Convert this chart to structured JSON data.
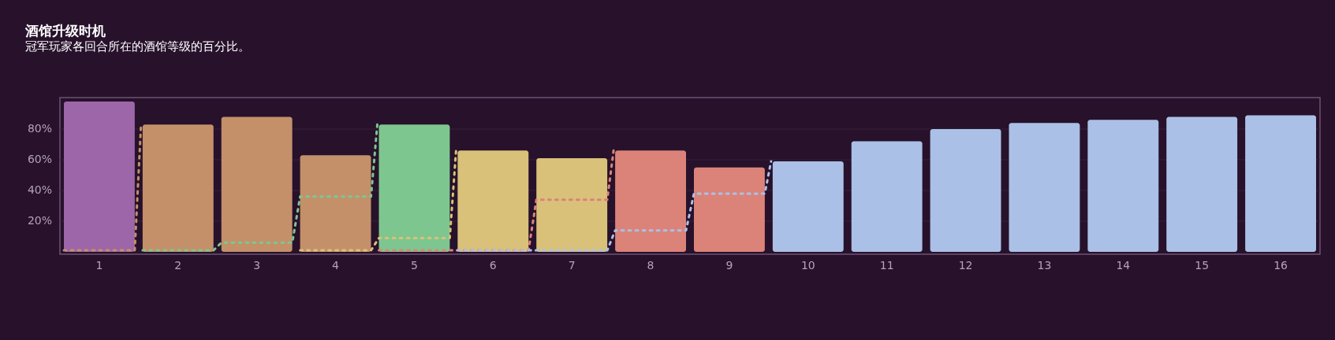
{
  "chart_data": {
    "type": "bar",
    "title": "酒馆升级时机",
    "subtitle": "冠军玩家各回合所在的酒馆等级的百分比。",
    "x": [
      1,
      2,
      3,
      4,
      5,
      6,
      7,
      8,
      9,
      10,
      11,
      12,
      13,
      14,
      15,
      16
    ],
    "series": [
      {
        "colors": [
          "#9d66a9",
          "#c4906a",
          "#c4906a",
          "#c4906a",
          "#7ec68f",
          "#d9c17a",
          "#d9c17a",
          "#dc8379",
          "#dc8379",
          "#abc0e6",
          "#abc0e6",
          "#abc0e6",
          "#abc0e6",
          "#abc0e6",
          "#abc0e6",
          "#abc0e6"
        ],
        "values": [
          98,
          83,
          88,
          63,
          83,
          66,
          61,
          66,
          55,
          59,
          72,
          80,
          84,
          86,
          88,
          89
        ]
      },
      {
        "type": "line",
        "color": "#c4906a",
        "x": [
          0.55,
          1.45,
          1.53
        ],
        "values": [
          1,
          1,
          83
        ]
      },
      {
        "type": "line",
        "color": "#7ec68f",
        "x": [
          1.55,
          2.45,
          2.55,
          3.45,
          3.55,
          4.45,
          4.53
        ],
        "values": [
          1,
          1,
          6,
          6,
          36,
          36,
          83
        ]
      },
      {
        "type": "line",
        "color": "#d9c17a",
        "x": [
          3.55,
          4.45,
          4.55,
          5.45,
          5.53
        ],
        "values": [
          1,
          1,
          9,
          9,
          66
        ]
      },
      {
        "type": "line",
        "color": "#dc8379",
        "x": [
          4.55,
          6.45,
          6.55,
          7.45,
          7.53
        ],
        "values": [
          1,
          1,
          34,
          34,
          66
        ]
      },
      {
        "type": "line",
        "color": "#abc0e6",
        "x": [
          5.55,
          7.45,
          7.55,
          8.45,
          8.55,
          9.45,
          9.53
        ],
        "values": [
          1,
          1,
          14,
          14,
          38,
          38,
          59
        ]
      }
    ],
    "xlim": [
      0.5,
      16.5
    ],
    "xticks": [
      1,
      2,
      3,
      4,
      5,
      6,
      7,
      8,
      9,
      10,
      11,
      12,
      13,
      14,
      15,
      16
    ],
    "ylim": [
      -1.5,
      100.5
    ],
    "yticks": [
      {
        "value": 20,
        "label": "20%"
      },
      {
        "value": 40,
        "label": "40%"
      },
      {
        "value": 60,
        "label": "60%"
      },
      {
        "value": 80,
        "label": "80%"
      }
    ],
    "grid": "y",
    "line_style": "dotted"
  }
}
